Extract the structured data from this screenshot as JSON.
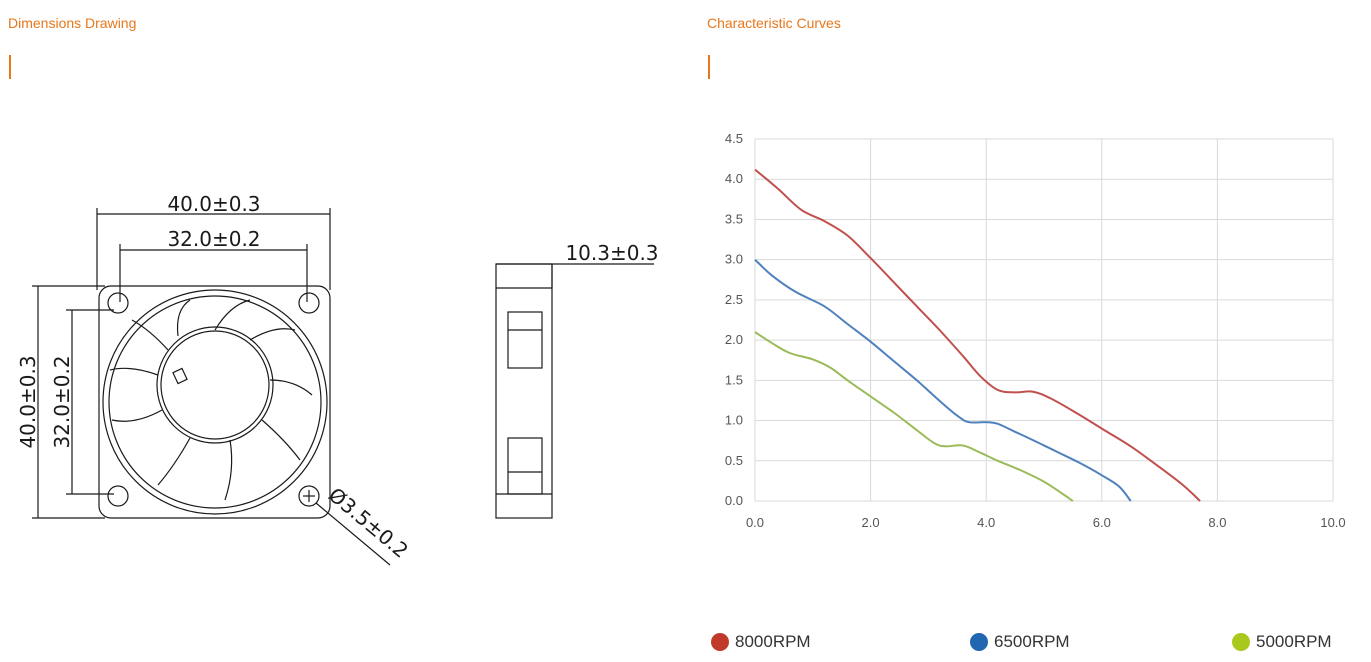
{
  "sections": {
    "dimensions_title": "Dimensions Drawing",
    "curves_title": "Characteristic Curves",
    "accent_color": "#e8771a"
  },
  "drawing": {
    "width_outer": "40.0±0.3",
    "width_inner": "32.0±0.2",
    "height_outer": "40.0±0.3",
    "height_inner": "32.0±0.2",
    "thickness": "10.3±0.3",
    "hole_diameter": "Ø3.5±0.2"
  },
  "chart_data": {
    "type": "line",
    "title": "",
    "xlabel": "",
    "ylabel": "",
    "xlim": [
      0,
      10
    ],
    "ylim": [
      0,
      4.5
    ],
    "x_ticks": [
      "0.0",
      "2.0",
      "4.0",
      "6.0",
      "8.0",
      "10.0"
    ],
    "y_ticks": [
      "0.0",
      "0.5",
      "1.0",
      "1.5",
      "2.0",
      "2.5",
      "3.0",
      "3.5",
      "4.0",
      "4.5"
    ],
    "grid": true,
    "legend_position": "bottom",
    "series": [
      {
        "name": "8000RPM",
        "color": "#c0504d",
        "points": [
          [
            0.0,
            4.12
          ],
          [
            0.4,
            3.88
          ],
          [
            0.8,
            3.62
          ],
          [
            1.2,
            3.48
          ],
          [
            1.6,
            3.3
          ],
          [
            2.0,
            3.02
          ],
          [
            2.4,
            2.72
          ],
          [
            2.8,
            2.42
          ],
          [
            3.2,
            2.12
          ],
          [
            3.6,
            1.8
          ],
          [
            3.9,
            1.55
          ],
          [
            4.2,
            1.38
          ],
          [
            4.5,
            1.35
          ],
          [
            4.8,
            1.36
          ],
          [
            5.1,
            1.28
          ],
          [
            5.5,
            1.12
          ],
          [
            6.0,
            0.9
          ],
          [
            6.5,
            0.68
          ],
          [
            7.0,
            0.42
          ],
          [
            7.4,
            0.2
          ],
          [
            7.7,
            0.0
          ]
        ]
      },
      {
        "name": "6500RPM",
        "color": "#4f81bd",
        "points": [
          [
            0.0,
            3.0
          ],
          [
            0.3,
            2.8
          ],
          [
            0.7,
            2.6
          ],
          [
            1.2,
            2.42
          ],
          [
            1.6,
            2.2
          ],
          [
            2.0,
            1.98
          ],
          [
            2.4,
            1.74
          ],
          [
            2.8,
            1.5
          ],
          [
            3.2,
            1.24
          ],
          [
            3.5,
            1.06
          ],
          [
            3.7,
            0.98
          ],
          [
            4.0,
            0.98
          ],
          [
            4.2,
            0.96
          ],
          [
            4.5,
            0.86
          ],
          [
            4.8,
            0.76
          ],
          [
            5.2,
            0.62
          ],
          [
            5.6,
            0.48
          ],
          [
            6.0,
            0.32
          ],
          [
            6.3,
            0.18
          ],
          [
            6.5,
            0.0
          ]
        ]
      },
      {
        "name": "5000RPM",
        "color": "#9bbb59",
        "points": [
          [
            0.0,
            2.1
          ],
          [
            0.3,
            1.96
          ],
          [
            0.6,
            1.84
          ],
          [
            1.0,
            1.76
          ],
          [
            1.3,
            1.66
          ],
          [
            1.6,
            1.5
          ],
          [
            2.0,
            1.3
          ],
          [
            2.4,
            1.1
          ],
          [
            2.8,
            0.88
          ],
          [
            3.1,
            0.72
          ],
          [
            3.3,
            0.68
          ],
          [
            3.6,
            0.69
          ],
          [
            3.9,
            0.6
          ],
          [
            4.2,
            0.5
          ],
          [
            4.6,
            0.38
          ],
          [
            5.0,
            0.24
          ],
          [
            5.3,
            0.1
          ],
          [
            5.5,
            0.0
          ]
        ]
      }
    ]
  },
  "legend": {
    "dot_colors": [
      "#c0392b",
      "#2066b0",
      "#a8c81e"
    ]
  }
}
